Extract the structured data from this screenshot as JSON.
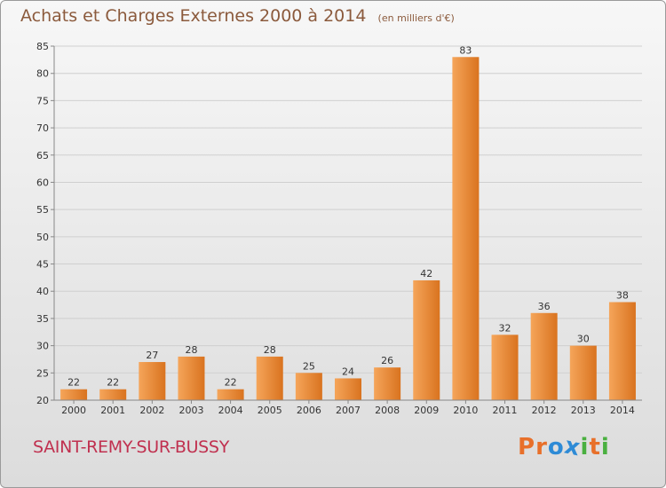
{
  "header": {
    "title": "Achats et Charges Externes 2000 à 2014",
    "subtitle": "(en milliers d'€)"
  },
  "footer": {
    "commune": "SAINT-REMY-SUR-BUSSY",
    "brand": [
      "P",
      "r",
      "o",
      "x",
      "i",
      "t",
      "i"
    ],
    "brand_colors": [
      "#e8702a",
      "#e8702a",
      "#2e8bd6",
      "#2e8bd6",
      "#4ab040",
      "#e8702a",
      "#4ab040"
    ]
  },
  "colors": {
    "bar_light": "#f5a55a",
    "bar_dark": "#d9731f",
    "grid": "#cfcfcf",
    "axis_text": "#333333"
  },
  "chart_data": {
    "type": "bar",
    "title": "Achats et Charges Externes 2000 à 2014",
    "subtitle": "(en milliers d'€)",
    "categories": [
      "2000",
      "2001",
      "2002",
      "2003",
      "2004",
      "2005",
      "2006",
      "2007",
      "2008",
      "2009",
      "2010",
      "2011",
      "2012",
      "2013",
      "2014"
    ],
    "values": [
      22,
      22,
      27,
      28,
      22,
      28,
      25,
      24,
      26,
      42,
      83,
      32,
      36,
      30,
      38
    ],
    "ylim": [
      20,
      85
    ],
    "yticks": [
      20,
      25,
      30,
      35,
      40,
      45,
      50,
      55,
      60,
      65,
      70,
      75,
      80,
      85
    ],
    "grid": true,
    "xlabel": "",
    "ylabel": ""
  }
}
